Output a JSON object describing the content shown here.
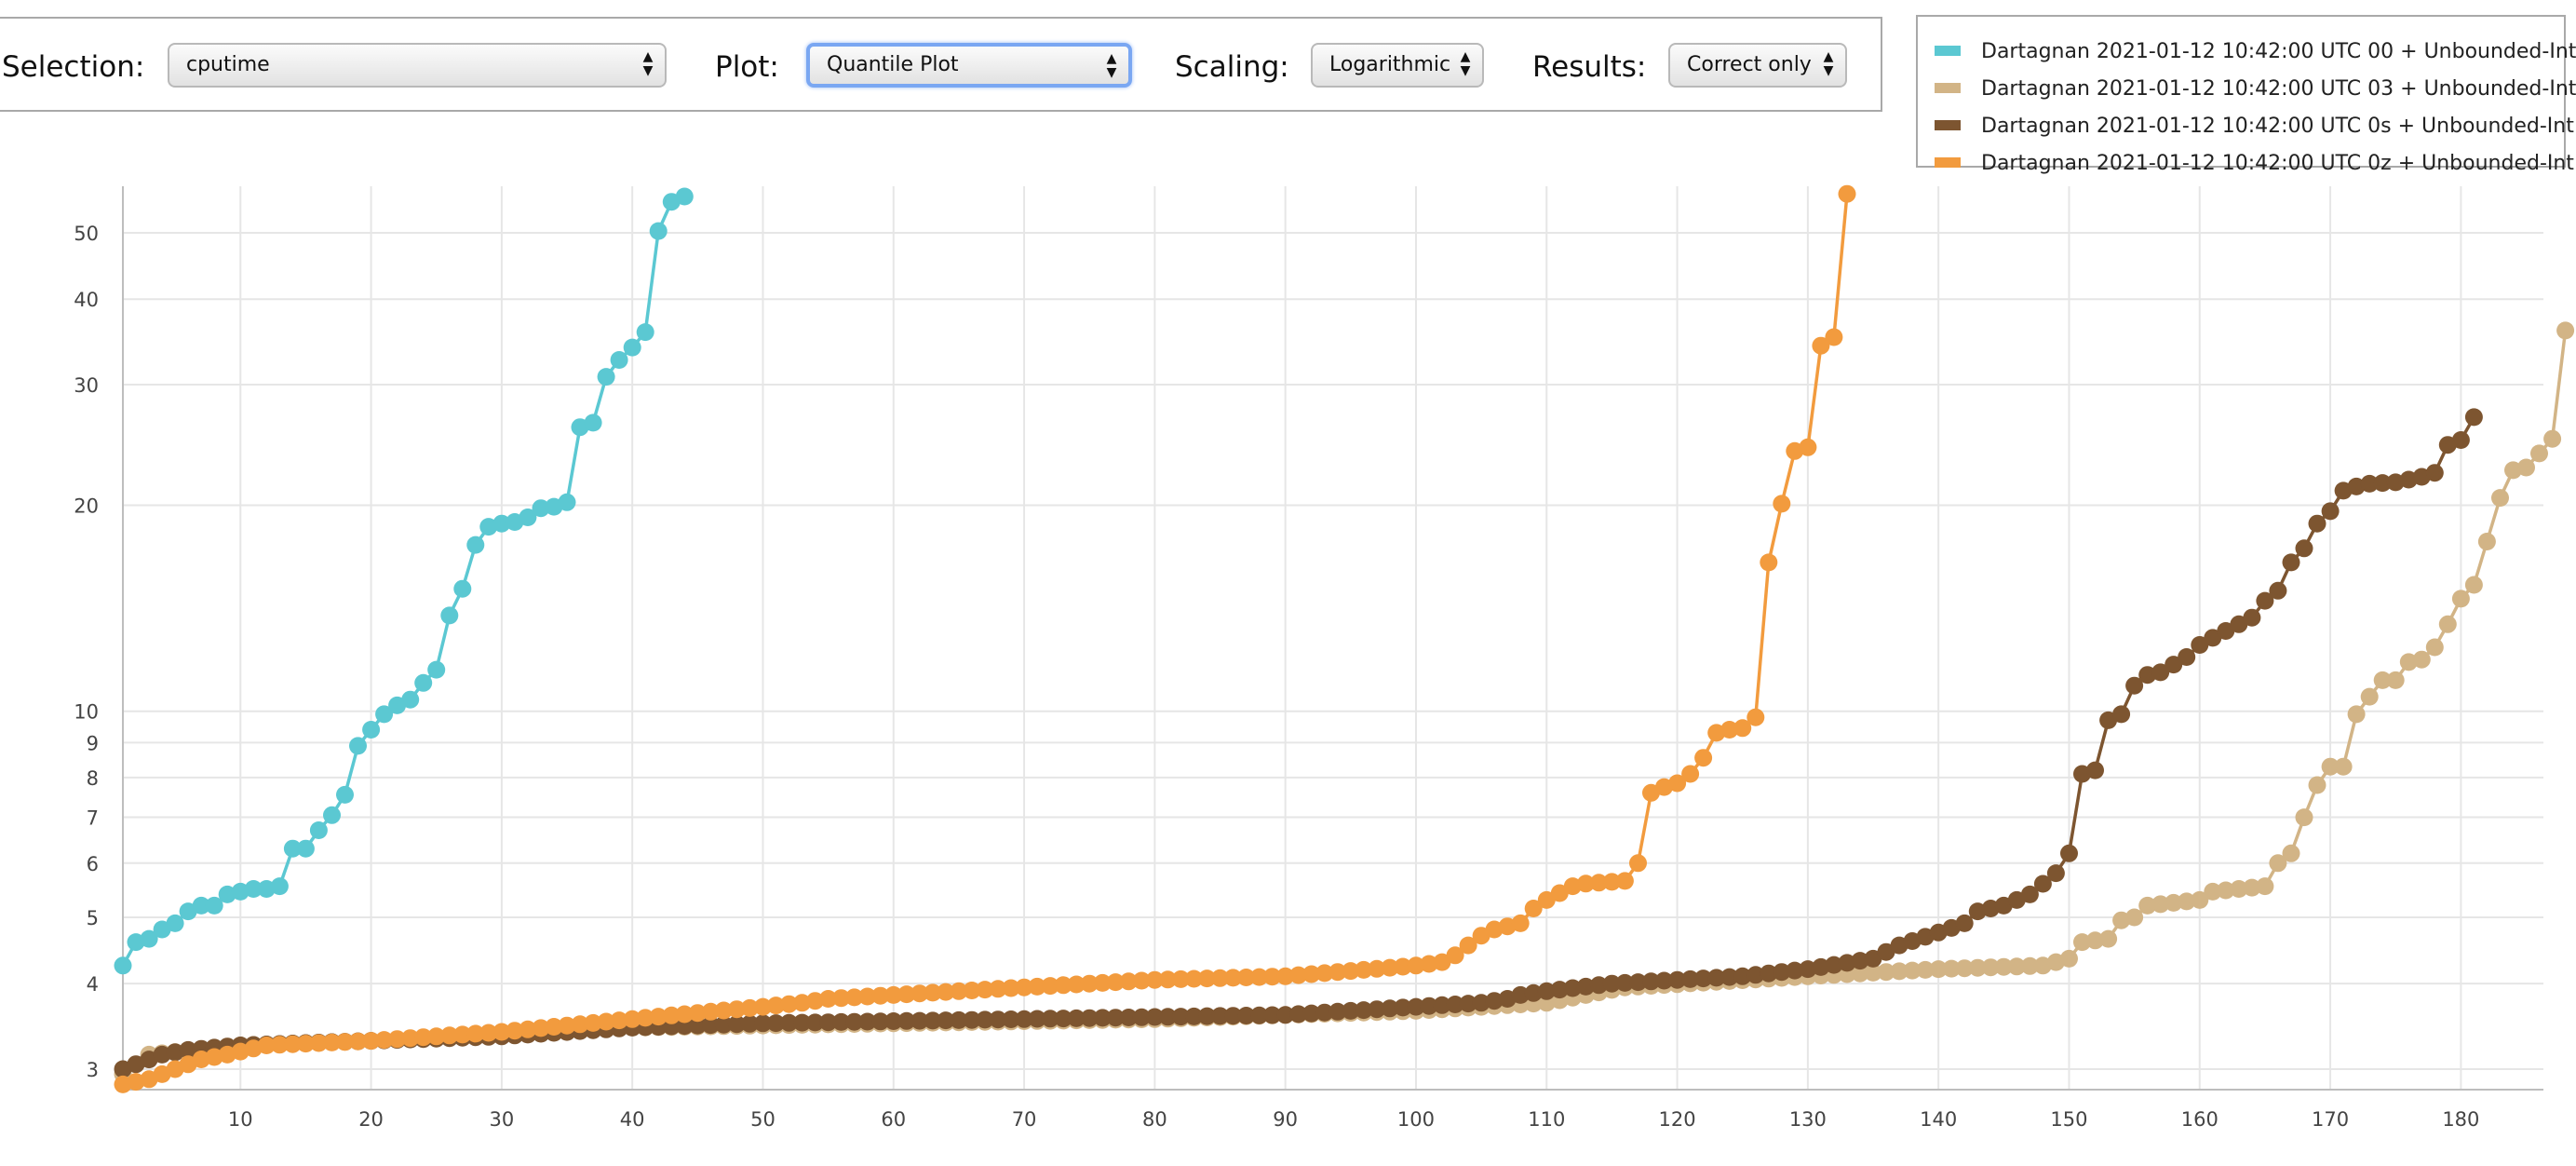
{
  "controls": {
    "selection": {
      "label": "Selection:",
      "value": "cputime"
    },
    "plot": {
      "label": "Plot:",
      "value": "Quantile Plot"
    },
    "scaling": {
      "label": "Scaling:",
      "value": "Logarithmic"
    },
    "results": {
      "label": "Results:",
      "value": "Correct only"
    }
  },
  "legend": {
    "items": [
      {
        "label": "Dartagnan 2021-01-12 10:42:00 UTC 00 + Unbounded-Int",
        "color": "#5bc8d2"
      },
      {
        "label": "Dartagnan 2021-01-12 10:42:00 UTC 03 + Unbounded-Int",
        "color": "#d2b486"
      },
      {
        "label": "Dartagnan 2021-01-12 10:42:00 UTC 0s + Unbounded-Int",
        "color": "#7d5530"
      },
      {
        "label": "Dartagnan 2021-01-12 10:42:00 UTC 0z + Unbounded-Int",
        "color": "#f29b3e"
      }
    ]
  },
  "chart_data": {
    "type": "line",
    "y_scale": "log",
    "grid": true,
    "x_ticks": [
      "10",
      "20",
      "30",
      "40",
      "50",
      "60",
      "70",
      "80",
      "90",
      "100",
      "110",
      "120",
      "130",
      "140",
      "150",
      "160",
      "170",
      "180"
    ],
    "y_ticks": [
      "3",
      "4",
      "5",
      "6",
      "7",
      "8",
      "9",
      "10",
      "20",
      "30",
      "40",
      "50"
    ],
    "xlim": [
      0,
      187
    ],
    "ylim": [
      2.85,
      62
    ],
    "series": [
      {
        "name": "Dartagnan 2021-01-12 10:42:00 UTC 00 + Unbounded-Int",
        "color": "#5bc8d2",
        "anchors": [
          [
            1,
            4.25
          ],
          [
            2,
            4.6
          ],
          [
            3,
            4.65
          ],
          [
            4,
            4.8
          ],
          [
            5,
            4.9
          ],
          [
            6,
            5.1
          ],
          [
            7,
            5.2
          ],
          [
            8,
            5.2
          ],
          [
            9,
            5.4
          ],
          [
            10,
            5.45
          ],
          [
            11,
            5.5
          ],
          [
            12,
            5.5
          ],
          [
            13,
            5.55
          ],
          [
            14,
            6.3
          ],
          [
            15,
            6.3
          ],
          [
            16,
            6.7
          ],
          [
            17,
            7.05
          ],
          [
            18,
            7.55
          ],
          [
            19,
            8.9
          ],
          [
            20,
            9.4
          ],
          [
            21,
            9.9
          ],
          [
            22,
            10.2
          ],
          [
            23,
            10.4
          ],
          [
            24,
            11.0
          ],
          [
            25,
            11.5
          ],
          [
            26,
            13.8
          ],
          [
            27,
            15.1
          ],
          [
            28,
            17.5
          ],
          [
            29,
            18.6
          ],
          [
            30,
            18.8
          ],
          [
            31,
            18.9
          ],
          [
            32,
            19.2
          ],
          [
            33,
            19.8
          ],
          [
            34,
            19.9
          ],
          [
            35,
            20.2
          ],
          [
            36,
            26.0
          ],
          [
            37,
            26.4
          ],
          [
            38,
            30.8
          ],
          [
            39,
            32.6
          ],
          [
            40,
            34.0
          ],
          [
            41,
            35.8
          ],
          [
            42,
            50.3
          ],
          [
            43,
            55.5
          ],
          [
            44,
            56.5
          ]
        ]
      },
      {
        "name": "Dartagnan 2021-01-12 10:42:00 UTC 03 + Unbounded-Int",
        "color": "#d2b486",
        "anchors": [
          [
            1,
            2.95
          ],
          [
            3,
            3.15
          ],
          [
            10,
            3.25
          ],
          [
            20,
            3.3
          ],
          [
            40,
            3.45
          ],
          [
            60,
            3.5
          ],
          [
            80,
            3.55
          ],
          [
            100,
            3.65
          ],
          [
            105,
            3.7
          ],
          [
            110,
            3.75
          ],
          [
            113,
            3.85
          ],
          [
            116,
            3.95
          ],
          [
            130,
            4.1
          ],
          [
            140,
            4.2
          ],
          [
            148,
            4.25
          ],
          [
            150,
            4.35
          ],
          [
            151,
            4.6
          ],
          [
            153,
            4.65
          ],
          [
            154,
            4.95
          ],
          [
            155,
            5.0
          ],
          [
            156,
            5.2
          ],
          [
            160,
            5.3
          ],
          [
            161,
            5.45
          ],
          [
            165,
            5.55
          ],
          [
            166,
            6.0
          ],
          [
            167,
            6.2
          ],
          [
            168,
            7.0
          ],
          [
            169,
            7.8
          ],
          [
            170,
            8.3
          ],
          [
            171,
            8.3
          ],
          [
            172,
            9.9
          ],
          [
            173,
            10.5
          ],
          [
            174,
            11.1
          ],
          [
            175,
            11.1
          ],
          [
            176,
            11.8
          ],
          [
            177,
            11.9
          ],
          [
            178,
            12.4
          ],
          [
            179,
            13.4
          ],
          [
            180,
            14.6
          ],
          [
            181,
            15.3
          ],
          [
            182,
            17.7
          ],
          [
            183,
            20.5
          ],
          [
            184,
            22.5
          ],
          [
            185,
            22.7
          ],
          [
            186,
            23.8
          ],
          [
            187,
            25.0
          ],
          [
            188,
            36.0
          ]
        ]
      },
      {
        "name": "Dartagnan 2021-01-12 10:42:00 UTC 0s + Unbounded-Int",
        "color": "#7d5530",
        "anchors": [
          [
            1,
            3.0
          ],
          [
            2,
            3.05
          ],
          [
            4,
            3.15
          ],
          [
            6,
            3.2
          ],
          [
            10,
            3.25
          ],
          [
            20,
            3.3
          ],
          [
            30,
            3.35
          ],
          [
            40,
            3.45
          ],
          [
            50,
            3.5
          ],
          [
            70,
            3.55
          ],
          [
            90,
            3.6
          ],
          [
            100,
            3.7
          ],
          [
            105,
            3.75
          ],
          [
            107,
            3.8
          ],
          [
            108,
            3.85
          ],
          [
            110,
            3.9
          ],
          [
            115,
            4.0
          ],
          [
            120,
            4.05
          ],
          [
            125,
            4.1
          ],
          [
            130,
            4.2
          ],
          [
            135,
            4.35
          ],
          [
            137,
            4.55
          ],
          [
            140,
            4.75
          ],
          [
            142,
            4.9
          ],
          [
            143,
            5.1
          ],
          [
            145,
            5.2
          ],
          [
            147,
            5.4
          ],
          [
            149,
            5.8
          ],
          [
            150,
            6.2
          ],
          [
            151,
            8.1
          ],
          [
            152,
            8.2
          ],
          [
            153,
            9.7
          ],
          [
            154,
            9.9
          ],
          [
            155,
            10.9
          ],
          [
            156,
            11.3
          ],
          [
            157,
            11.4
          ],
          [
            158,
            11.7
          ],
          [
            159,
            12.0
          ],
          [
            160,
            12.5
          ],
          [
            161,
            12.8
          ],
          [
            162,
            13.1
          ],
          [
            163,
            13.4
          ],
          [
            164,
            13.7
          ],
          [
            165,
            14.5
          ],
          [
            166,
            15.0
          ],
          [
            167,
            16.5
          ],
          [
            168,
            17.3
          ],
          [
            169,
            18.8
          ],
          [
            170,
            19.6
          ],
          [
            171,
            21.0
          ],
          [
            172,
            21.3
          ],
          [
            173,
            21.5
          ],
          [
            175,
            21.6
          ],
          [
            176,
            21.8
          ],
          [
            177,
            22.0
          ],
          [
            178,
            22.3
          ],
          [
            179,
            24.5
          ],
          [
            180,
            24.9
          ],
          [
            181,
            26.9
          ]
        ]
      },
      {
        "name": "Dartagnan 2021-01-12 10:42:00 UTC 0z + Unbounded-Int",
        "color": "#f29b3e",
        "anchors": [
          [
            1,
            2.85
          ],
          [
            3,
            2.9
          ],
          [
            5,
            3.0
          ],
          [
            7,
            3.1
          ],
          [
            9,
            3.15
          ],
          [
            12,
            3.25
          ],
          [
            20,
            3.3
          ],
          [
            25,
            3.35
          ],
          [
            30,
            3.4
          ],
          [
            40,
            3.55
          ],
          [
            50,
            3.7
          ],
          [
            53,
            3.75
          ],
          [
            55,
            3.8
          ],
          [
            60,
            3.85
          ],
          [
            70,
            3.95
          ],
          [
            80,
            4.05
          ],
          [
            90,
            4.1
          ],
          [
            100,
            4.25
          ],
          [
            102,
            4.3
          ],
          [
            103,
            4.4
          ],
          [
            104,
            4.55
          ],
          [
            105,
            4.7
          ],
          [
            106,
            4.8
          ],
          [
            108,
            4.9
          ],
          [
            109,
            5.15
          ],
          [
            110,
            5.3
          ],
          [
            112,
            5.55
          ],
          [
            113,
            5.6
          ],
          [
            116,
            5.65
          ],
          [
            117,
            6.0
          ],
          [
            118,
            7.6
          ],
          [
            119,
            7.75
          ],
          [
            120,
            7.85
          ],
          [
            121,
            8.1
          ],
          [
            122,
            8.55
          ],
          [
            123,
            9.3
          ],
          [
            124,
            9.4
          ],
          [
            125,
            9.45
          ],
          [
            126,
            9.8
          ],
          [
            127,
            16.5
          ],
          [
            128,
            20.1
          ],
          [
            129,
            24.0
          ],
          [
            130,
            24.3
          ],
          [
            131,
            34.2
          ],
          [
            132,
            35.2
          ],
          [
            133,
            57.0
          ]
        ]
      }
    ]
  }
}
